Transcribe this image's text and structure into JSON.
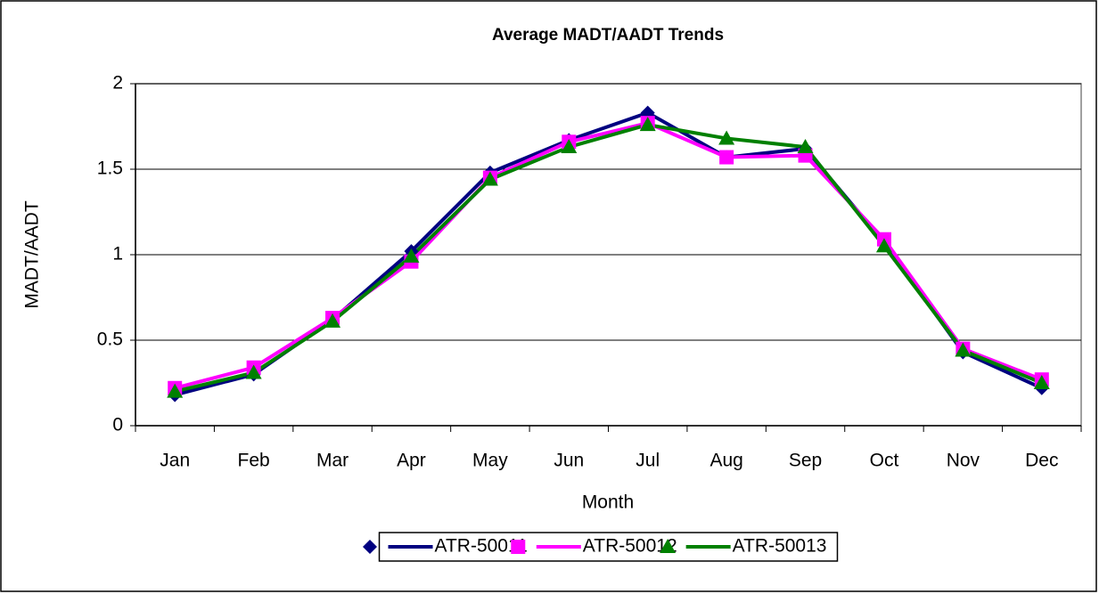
{
  "chart_data": {
    "type": "line",
    "title": "Average MADT/AADT Trends",
    "x_label": "Month",
    "y_label": "MADT/AADT",
    "categories": [
      "Jan",
      "Feb",
      "Mar",
      "Apr",
      "May",
      "Jun",
      "Jul",
      "Aug",
      "Sep",
      "Oct",
      "Nov",
      "Dec"
    ],
    "series": [
      {
        "name": "ATR-50011",
        "color": "#000080",
        "marker": "diamond",
        "values": [
          0.18,
          0.3,
          0.62,
          1.02,
          1.48,
          1.67,
          1.83,
          1.57,
          1.62,
          1.07,
          0.43,
          0.22
        ]
      },
      {
        "name": "ATR-50012",
        "color": "#ff00ff",
        "marker": "square",
        "values": [
          0.22,
          0.34,
          0.63,
          0.96,
          1.45,
          1.66,
          1.77,
          1.57,
          1.58,
          1.09,
          0.45,
          0.27
        ]
      },
      {
        "name": "ATR-50013",
        "color": "#008000",
        "marker": "triangle",
        "values": [
          0.2,
          0.31,
          0.61,
          0.99,
          1.44,
          1.63,
          1.76,
          1.68,
          1.63,
          1.05,
          0.44,
          0.25
        ]
      }
    ],
    "ylim": [
      0,
      2
    ],
    "yticks": [
      0,
      0.5,
      1,
      1.5,
      2
    ],
    "grid": true,
    "legend": "bottom"
  }
}
